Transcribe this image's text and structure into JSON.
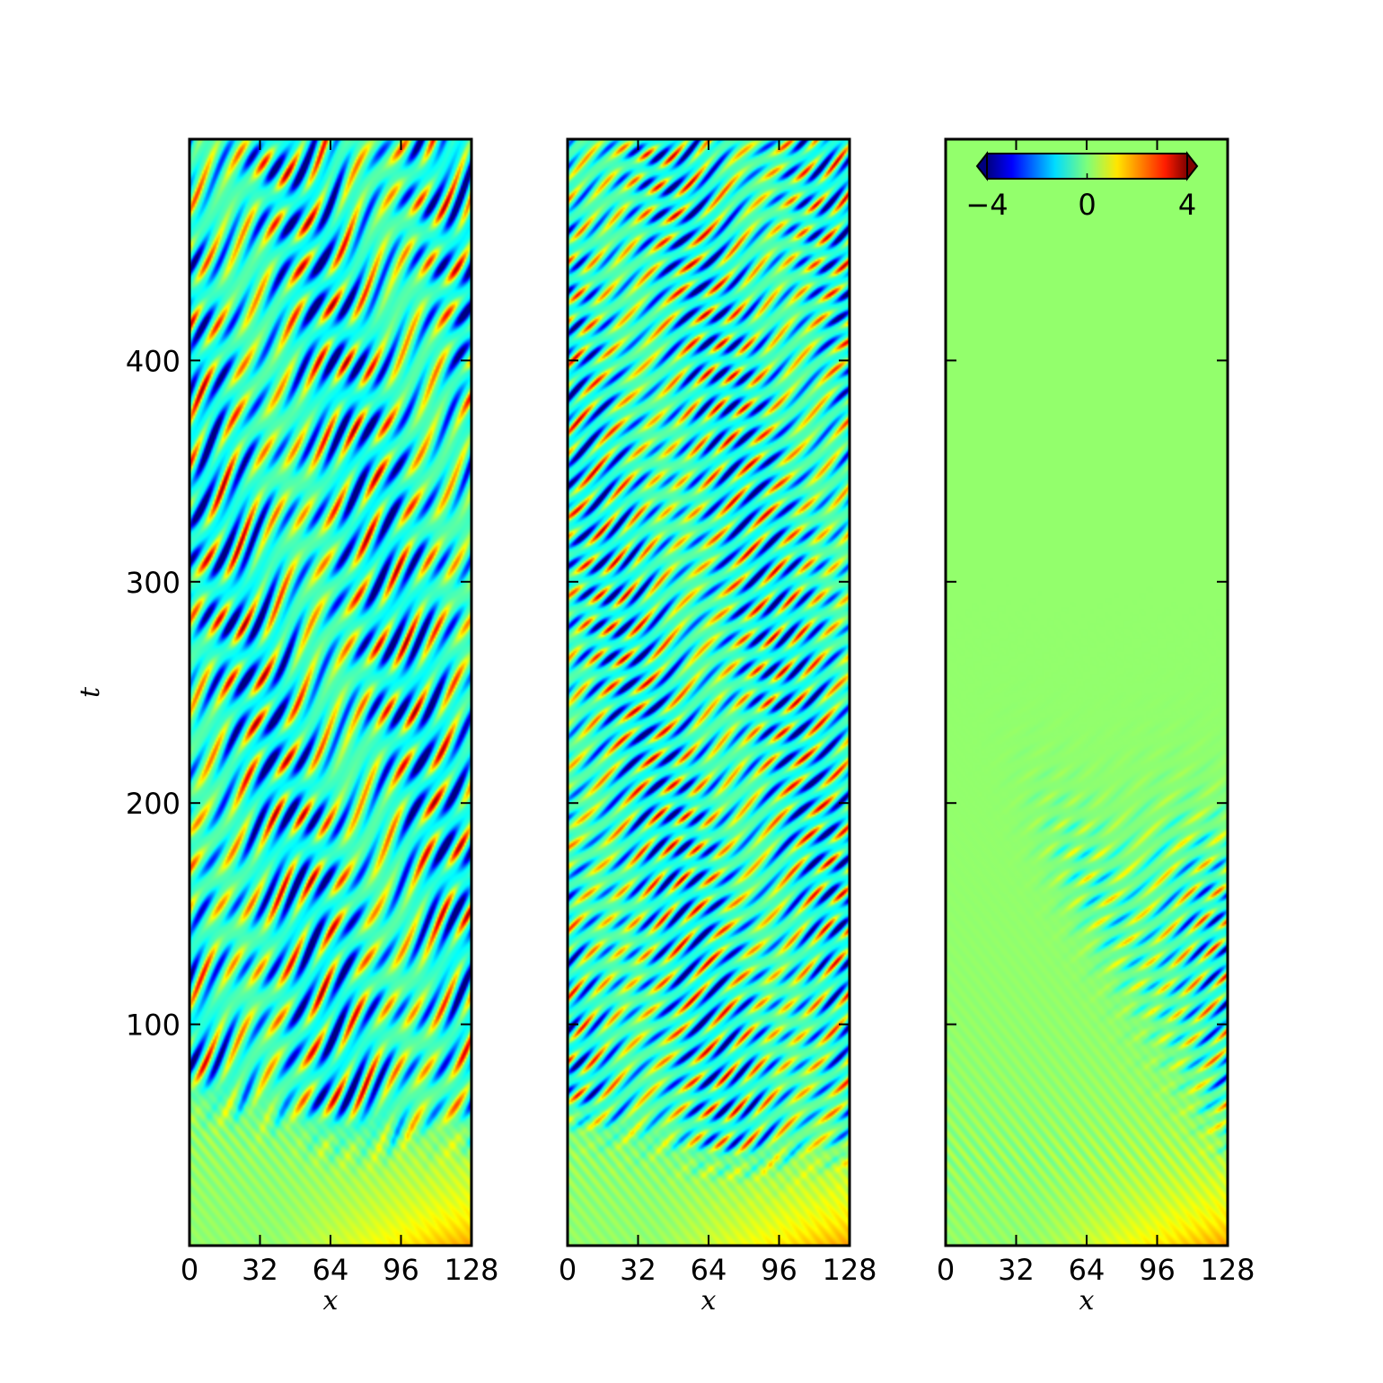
{
  "chart_data": {
    "type": "heatmap",
    "colormap": "jet",
    "color_range": [
      -4,
      4
    ],
    "colorbar": {
      "ticks": [
        -4,
        0,
        4
      ],
      "tick_labels": [
        "−4",
        "0",
        "4"
      ],
      "placement": "top inside right panel",
      "extend": "both"
    },
    "x_range": [
      0,
      128
    ],
    "t_range": [
      0,
      500
    ],
    "panels": [
      {
        "xlabel": "x",
        "ylabel": "t",
        "xticks": [
          0,
          32,
          64,
          96,
          128
        ],
        "xtick_labels": [
          "0",
          "32",
          "64",
          "96",
          "128"
        ],
        "yticks": [
          100,
          200,
          300,
          400
        ],
        "ytick_labels": [
          "100",
          "200",
          "300",
          "400"
        ],
        "pattern": {
          "onset_t": 50,
          "drift_slope": 0.6,
          "amplitude": 3.0,
          "localized": false
        }
      },
      {
        "xlabel": "x",
        "ylabel": "",
        "xticks": [
          0,
          32,
          64,
          96,
          128
        ],
        "xtick_labels": [
          "0",
          "32",
          "64",
          "96",
          "128"
        ],
        "yticks": [
          100,
          200,
          300,
          400
        ],
        "ytick_labels": [],
        "pattern": {
          "onset_t": 40,
          "drift_slope": 1.2,
          "amplitude": 2.8,
          "localized": false
        }
      },
      {
        "xlabel": "x",
        "ylabel": "",
        "xticks": [
          0,
          32,
          64,
          96,
          128
        ],
        "xtick_labels": [
          "0",
          "32",
          "64",
          "96",
          "128"
        ],
        "yticks": [
          100,
          200,
          300,
          400
        ],
        "ytick_labels": [],
        "pattern": {
          "onset_t": 40,
          "drift_slope": 1.4,
          "amplitude": 2.6,
          "localized": true
        }
      }
    ]
  }
}
